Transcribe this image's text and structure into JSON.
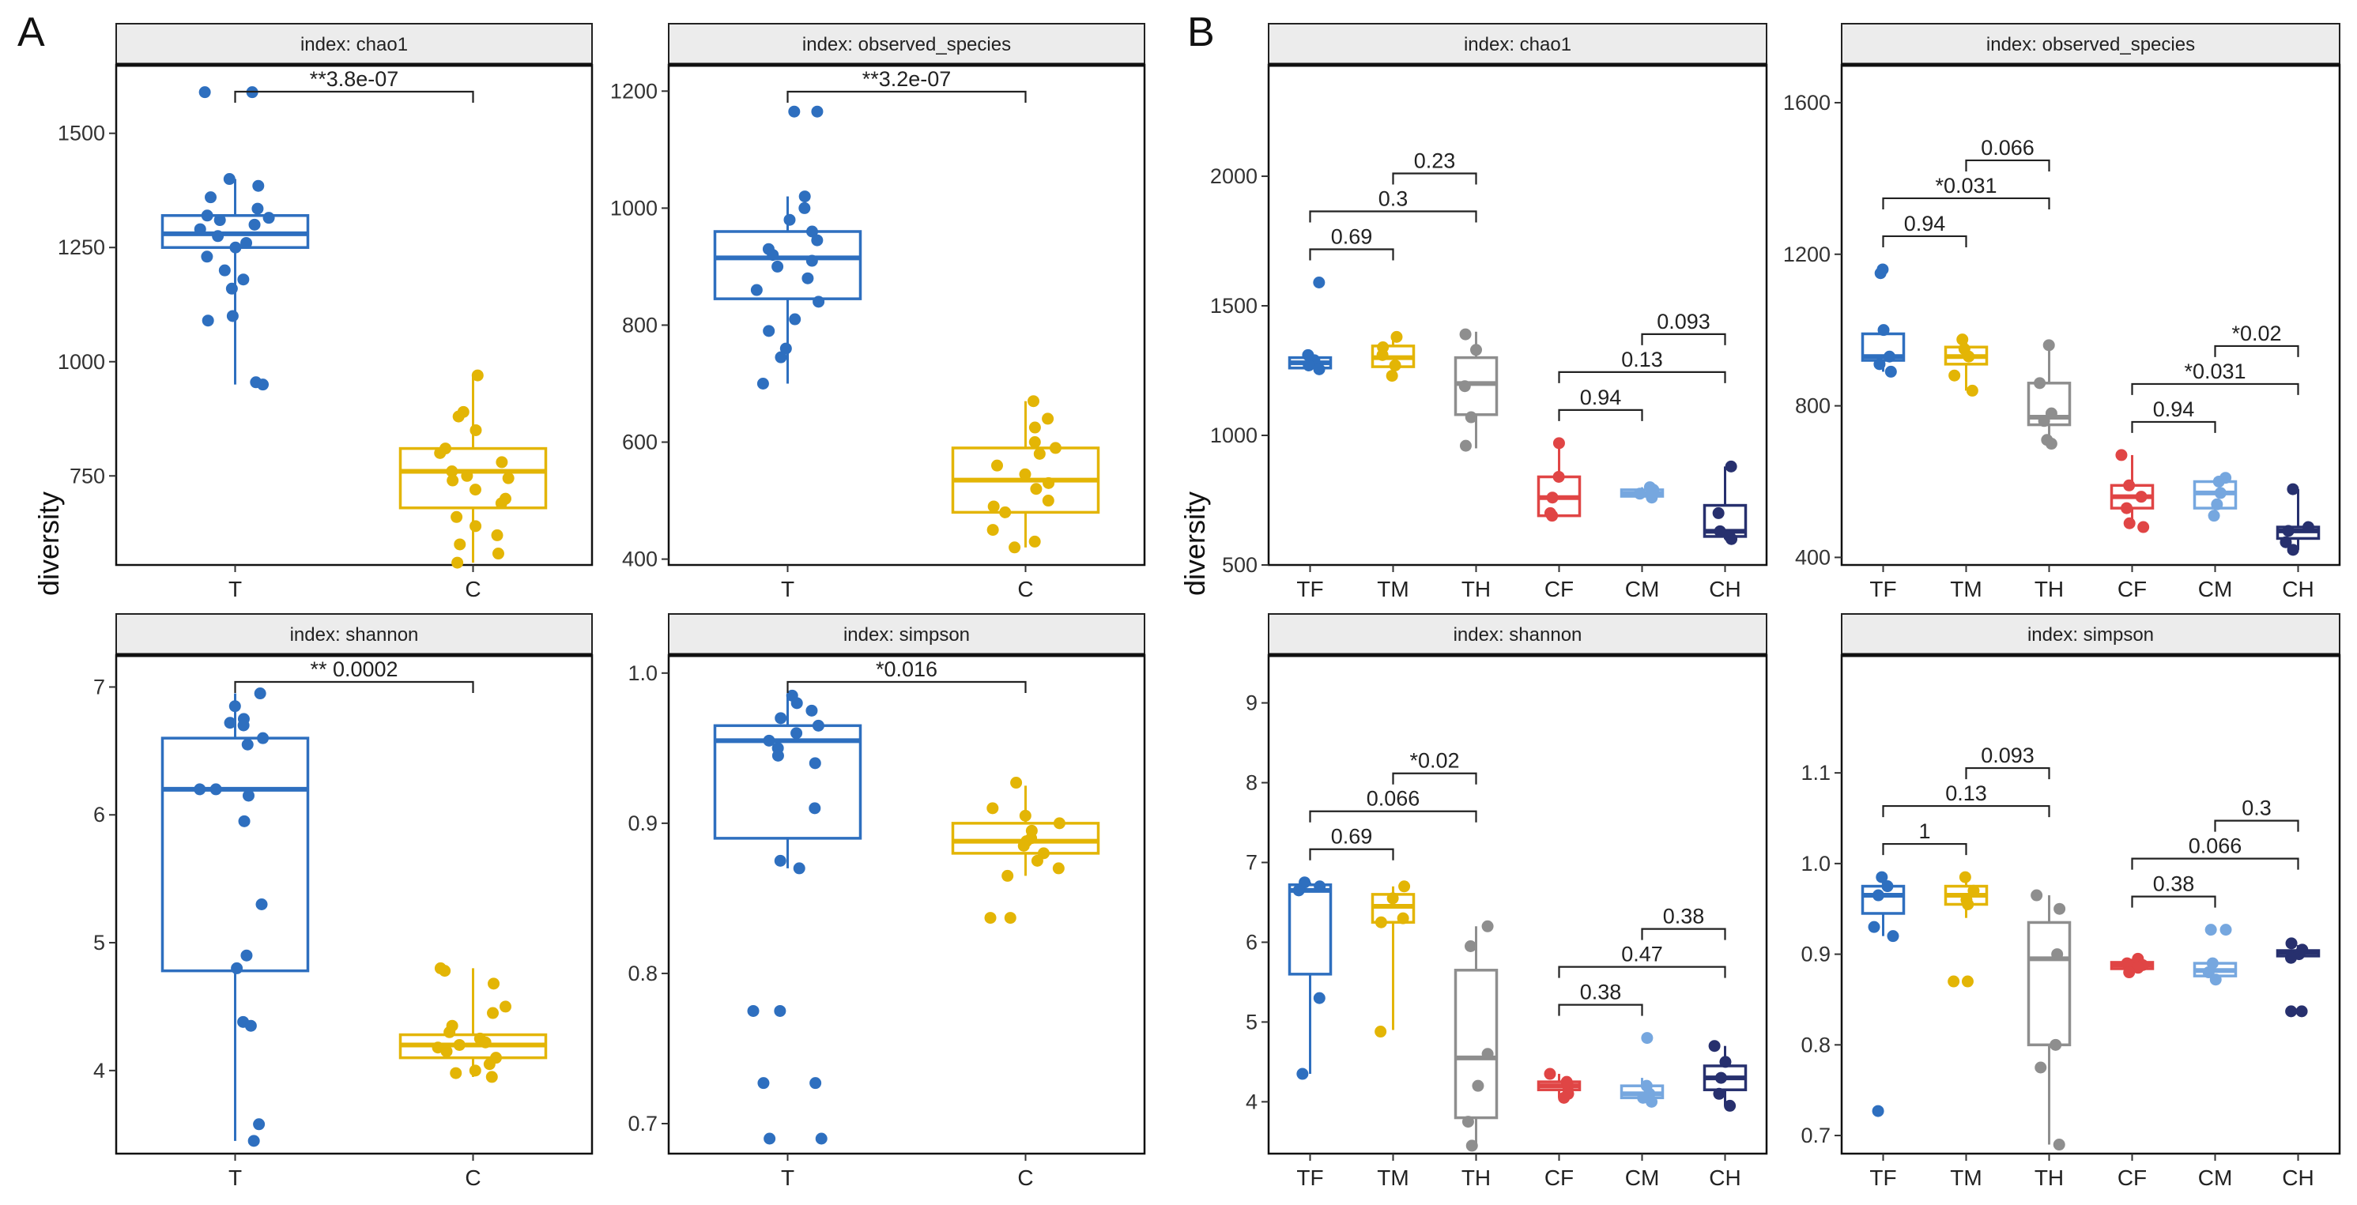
{
  "figure": {
    "panel_labels": [
      "A",
      "B"
    ],
    "shared_ylabel": "diversity"
  },
  "chart_data": [
    {
      "id": "A-chao1",
      "panel": "A",
      "type": "box",
      "title": "index: chao1",
      "ylabel": "diversity",
      "categories": [
        "T",
        "C"
      ],
      "colors": [
        "#2e6fbf",
        "#e3b505"
      ],
      "ylim": [
        555,
        1650
      ],
      "yticks": [
        750,
        1000,
        1250,
        1500
      ],
      "boxes": [
        {
          "category": "T",
          "min": 950,
          "q1": 1250,
          "median": 1280,
          "q3": 1320,
          "max": 1400,
          "points": [
            1590,
            1590,
            1400,
            1385,
            1360,
            1335,
            1320,
            1315,
            1310,
            1300,
            1290,
            1275,
            1260,
            1250,
            1230,
            1200,
            1180,
            1160,
            1100,
            1090,
            955,
            950
          ]
        },
        {
          "category": "C",
          "min": 560,
          "q1": 680,
          "median": 760,
          "q3": 810,
          "max": 970,
          "points": [
            970,
            890,
            880,
            850,
            810,
            800,
            780,
            760,
            750,
            745,
            740,
            720,
            700,
            690,
            660,
            640,
            620,
            600,
            580,
            560
          ]
        }
      ],
      "comparisons": [
        {
          "groups": [
            "T",
            "C"
          ],
          "label": "**3.8e-07"
        }
      ]
    },
    {
      "id": "A-observed",
      "panel": "A",
      "type": "box",
      "title": "index: observed_species",
      "ylabel": "diversity",
      "categories": [
        "T",
        "C"
      ],
      "colors": [
        "#2e6fbf",
        "#e3b505"
      ],
      "ylim": [
        390,
        1245
      ],
      "yticks": [
        400,
        600,
        800,
        1000,
        1200
      ],
      "boxes": [
        {
          "category": "T",
          "min": 700,
          "q1": 845,
          "median": 915,
          "q3": 960,
          "max": 1020,
          "points": [
            1165,
            1165,
            1020,
            1000,
            980,
            960,
            945,
            930,
            920,
            910,
            900,
            880,
            860,
            840,
            810,
            790,
            760,
            745,
            700
          ]
        },
        {
          "category": "C",
          "min": 420,
          "q1": 480,
          "median": 535,
          "q3": 590,
          "max": 670,
          "points": [
            670,
            640,
            625,
            600,
            590,
            580,
            560,
            545,
            530,
            520,
            500,
            490,
            480,
            450,
            430,
            420
          ]
        }
      ],
      "comparisons": [
        {
          "groups": [
            "T",
            "C"
          ],
          "label": "**3.2e-07"
        }
      ]
    },
    {
      "id": "A-shannon",
      "panel": "A",
      "type": "box",
      "title": "index: shannon",
      "ylabel": "diversity",
      "categories": [
        "T",
        "C"
      ],
      "colors": [
        "#2e6fbf",
        "#e3b505"
      ],
      "ylim": [
        3.35,
        7.25
      ],
      "yticks": [
        4,
        5,
        6,
        7
      ],
      "boxes": [
        {
          "category": "T",
          "min": 3.45,
          "q1": 4.78,
          "median": 6.2,
          "q3": 6.6,
          "max": 6.95,
          "points": [
            6.95,
            6.85,
            6.75,
            6.72,
            6.7,
            6.6,
            6.55,
            6.2,
            6.2,
            6.15,
            5.95,
            5.3,
            4.9,
            4.8,
            4.38,
            4.35,
            3.58,
            3.45
          ]
        },
        {
          "category": "C",
          "min": 3.95,
          "q1": 4.1,
          "median": 4.2,
          "q3": 4.28,
          "max": 4.8,
          "points": [
            4.8,
            4.78,
            4.68,
            4.5,
            4.45,
            4.35,
            4.3,
            4.25,
            4.22,
            4.2,
            4.18,
            4.15,
            4.1,
            4.05,
            4.0,
            3.98,
            3.95
          ]
        }
      ],
      "comparisons": [
        {
          "groups": [
            "T",
            "C"
          ],
          "label": "** 0.0002"
        }
      ]
    },
    {
      "id": "A-simpson",
      "panel": "A",
      "type": "box",
      "title": "index: simpson",
      "ylabel": "diversity",
      "categories": [
        "T",
        "C"
      ],
      "colors": [
        "#2e6fbf",
        "#e3b505"
      ],
      "ylim": [
        0.68,
        1.012
      ],
      "yticks": [
        0.7,
        0.8,
        0.9,
        1.0
      ],
      "boxes": [
        {
          "category": "T",
          "min": 0.87,
          "q1": 0.89,
          "median": 0.955,
          "q3": 0.965,
          "max": 0.985,
          "points": [
            0.985,
            0.98,
            0.975,
            0.97,
            0.965,
            0.96,
            0.955,
            0.95,
            0.945,
            0.94,
            0.91,
            0.875,
            0.87,
            0.775,
            0.775,
            0.727,
            0.727,
            0.69,
            0.69
          ]
        },
        {
          "category": "C",
          "min": 0.865,
          "q1": 0.88,
          "median": 0.888,
          "q3": 0.9,
          "max": 0.925,
          "points": [
            0.927,
            0.91,
            0.905,
            0.9,
            0.895,
            0.89,
            0.888,
            0.885,
            0.88,
            0.875,
            0.87,
            0.865,
            0.837,
            0.837
          ]
        }
      ],
      "comparisons": [
        {
          "groups": [
            "T",
            "C"
          ],
          "label": "*0.016"
        }
      ]
    },
    {
      "id": "B-chao1",
      "panel": "B",
      "type": "box",
      "title": "index: chao1",
      "ylabel": "diversity",
      "categories": [
        "TF",
        "TM",
        "TH",
        "CF",
        "CM",
        "CH"
      ],
      "colors": [
        "#2e6fbf",
        "#e3b505",
        "#8e8e8e",
        "#e04545",
        "#76a7df",
        "#27306e"
      ],
      "ylim": [
        500,
        2430
      ],
      "yticks": [
        500,
        1000,
        1500,
        2000
      ],
      "boxes": [
        {
          "category": "TF",
          "min": 1250,
          "q1": 1260,
          "median": 1280,
          "q3": 1300,
          "max": 1310,
          "points": [
            1590,
            1310,
            1290,
            1270,
            1255
          ]
        },
        {
          "category": "TM",
          "min": 1220,
          "q1": 1265,
          "median": 1300,
          "q3": 1345,
          "max": 1380,
          "points": [
            1380,
            1340,
            1310,
            1270,
            1230
          ]
        },
        {
          "category": "TH",
          "min": 950,
          "q1": 1080,
          "median": 1200,
          "q3": 1300,
          "max": 1400,
          "points": [
            1390,
            1330,
            1190,
            1070,
            960
          ]
        },
        {
          "category": "CF",
          "min": 690,
          "q1": 690,
          "median": 760,
          "q3": 840,
          "max": 970,
          "points": [
            970,
            840,
            760,
            700,
            690
          ]
        },
        {
          "category": "CM",
          "min": 760,
          "q1": 765,
          "median": 775,
          "q3": 790,
          "max": 800,
          "points": [
            800,
            790,
            775,
            770,
            760
          ]
        },
        {
          "category": "CH",
          "min": 600,
          "q1": 610,
          "median": 630,
          "q3": 730,
          "max": 880,
          "points": [
            880,
            700,
            630,
            610,
            600
          ]
        }
      ],
      "comparisons": [
        {
          "groups": [
            "TF",
            "TM"
          ],
          "label": "0.69"
        },
        {
          "groups": [
            "TF",
            "TH"
          ],
          "label": "0.3"
        },
        {
          "groups": [
            "TM",
            "TH"
          ],
          "label": "0.23"
        },
        {
          "groups": [
            "CF",
            "CM"
          ],
          "label": "0.94"
        },
        {
          "groups": [
            "CF",
            "CH"
          ],
          "label": "0.13"
        },
        {
          "groups": [
            "CM",
            "CH"
          ],
          "label": "0.093"
        }
      ]
    },
    {
      "id": "B-observed",
      "panel": "B",
      "type": "box",
      "title": "index: observed_species",
      "ylabel": "diversity",
      "categories": [
        "TF",
        "TM",
        "TH",
        "CF",
        "CM",
        "CH"
      ],
      "colors": [
        "#2e6fbf",
        "#e3b505",
        "#8e8e8e",
        "#e04545",
        "#76a7df",
        "#27306e"
      ],
      "ylim": [
        380,
        1700
      ],
      "yticks": [
        400,
        800,
        1200,
        1600
      ],
      "boxes": [
        {
          "category": "TF",
          "min": 890,
          "q1": 920,
          "median": 930,
          "q3": 990,
          "max": 1010,
          "points": [
            1160,
            1150,
            1000,
            930,
            910,
            890
          ]
        },
        {
          "category": "TM",
          "min": 840,
          "q1": 910,
          "median": 930,
          "q3": 955,
          "max": 975,
          "points": [
            975,
            950,
            930,
            880,
            840
          ]
        },
        {
          "category": "TH",
          "min": 700,
          "q1": 750,
          "median": 770,
          "q3": 860,
          "max": 960,
          "points": [
            960,
            860,
            780,
            760,
            710,
            700
          ]
        },
        {
          "category": "CF",
          "min": 480,
          "q1": 530,
          "median": 560,
          "q3": 590,
          "max": 670,
          "points": [
            670,
            590,
            560,
            530,
            490,
            480
          ]
        },
        {
          "category": "CM",
          "min": 510,
          "q1": 530,
          "median": 570,
          "q3": 600,
          "max": 610,
          "points": [
            610,
            600,
            570,
            540,
            510
          ]
        },
        {
          "category": "CH",
          "min": 420,
          "q1": 450,
          "median": 470,
          "q3": 480,
          "max": 580,
          "points": [
            580,
            480,
            470,
            440,
            420
          ]
        }
      ],
      "comparisons": [
        {
          "groups": [
            "TF",
            "TM"
          ],
          "label": "0.94"
        },
        {
          "groups": [
            "TF",
            "TH"
          ],
          "label": "*0.031"
        },
        {
          "groups": [
            "TM",
            "TH"
          ],
          "label": "0.066"
        },
        {
          "groups": [
            "CF",
            "CM"
          ],
          "label": "0.94"
        },
        {
          "groups": [
            "CF",
            "CH"
          ],
          "label": "*0.031"
        },
        {
          "groups": [
            "CM",
            "CH"
          ],
          "label": "*0.02"
        }
      ]
    },
    {
      "id": "B-shannon",
      "panel": "B",
      "type": "box",
      "title": "index: shannon",
      "ylabel": "diversity",
      "categories": [
        "TF",
        "TM",
        "TH",
        "CF",
        "CM",
        "CH"
      ],
      "colors": [
        "#2e6fbf",
        "#e3b505",
        "#8e8e8e",
        "#e04545",
        "#76a7df",
        "#27306e"
      ],
      "ylim": [
        3.35,
        9.6
      ],
      "yticks": [
        4,
        5,
        6,
        7,
        8,
        9
      ],
      "boxes": [
        {
          "category": "TF",
          "min": 4.35,
          "q1": 5.6,
          "median": 6.65,
          "q3": 6.72,
          "max": 6.75,
          "points": [
            6.75,
            6.7,
            6.65,
            5.3,
            4.35
          ]
        },
        {
          "category": "TM",
          "min": 4.9,
          "q1": 6.25,
          "median": 6.45,
          "q3": 6.6,
          "max": 6.7,
          "points": [
            6.7,
            6.55,
            6.3,
            6.25,
            4.88
          ]
        },
        {
          "category": "TH",
          "min": 3.45,
          "q1": 3.8,
          "median": 4.55,
          "q3": 5.65,
          "max": 6.2,
          "points": [
            6.2,
            5.95,
            4.6,
            4.2,
            3.75,
            3.45
          ]
        },
        {
          "category": "CF",
          "min": 4.05,
          "q1": 4.15,
          "median": 4.2,
          "q3": 4.25,
          "max": 4.35,
          "points": [
            4.35,
            4.25,
            4.2,
            4.1,
            4.05
          ]
        },
        {
          "category": "CM",
          "min": 4.0,
          "q1": 4.05,
          "median": 4.1,
          "q3": 4.2,
          "max": 4.3,
          "points": [
            4.8,
            4.2,
            4.1,
            4.05,
            4.0
          ]
        },
        {
          "category": "CH",
          "min": 3.95,
          "q1": 4.15,
          "median": 4.3,
          "q3": 4.45,
          "max": 4.7,
          "points": [
            4.7,
            4.5,
            4.3,
            4.1,
            3.95
          ]
        }
      ],
      "comparisons": [
        {
          "groups": [
            "TF",
            "TM"
          ],
          "label": "0.69"
        },
        {
          "groups": [
            "TF",
            "TH"
          ],
          "label": "0.066"
        },
        {
          "groups": [
            "TM",
            "TH"
          ],
          "label": "*0.02"
        },
        {
          "groups": [
            "CF",
            "CM"
          ],
          "label": "0.38"
        },
        {
          "groups": [
            "CF",
            "CH"
          ],
          "label": "0.47"
        },
        {
          "groups": [
            "CM",
            "CH"
          ],
          "label": "0.38"
        }
      ]
    },
    {
      "id": "B-simpson",
      "panel": "B",
      "type": "box",
      "title": "index: simpson",
      "ylabel": "diversity",
      "categories": [
        "TF",
        "TM",
        "TH",
        "CF",
        "CM",
        "CH"
      ],
      "colors": [
        "#2e6fbf",
        "#e3b505",
        "#8e8e8e",
        "#e04545",
        "#76a7df",
        "#27306e"
      ],
      "ylim": [
        0.68,
        1.23
      ],
      "yticks": [
        0.7,
        0.8,
        0.9,
        1.0,
        1.1
      ],
      "boxes": [
        {
          "category": "TF",
          "min": 0.92,
          "q1": 0.945,
          "median": 0.965,
          "q3": 0.975,
          "max": 0.985,
          "points": [
            0.985,
            0.975,
            0.965,
            0.93,
            0.92,
            0.727
          ]
        },
        {
          "category": "TM",
          "min": 0.94,
          "q1": 0.955,
          "median": 0.965,
          "q3": 0.975,
          "max": 0.985,
          "points": [
            0.985,
            0.97,
            0.96,
            0.955,
            0.87,
            0.87
          ]
        },
        {
          "category": "TH",
          "min": 0.69,
          "q1": 0.8,
          "median": 0.895,
          "q3": 0.935,
          "max": 0.965,
          "points": [
            0.965,
            0.95,
            0.9,
            0.8,
            0.775,
            0.69
          ]
        },
        {
          "category": "CF",
          "min": 0.88,
          "q1": 0.884,
          "median": 0.888,
          "q3": 0.891,
          "max": 0.895,
          "points": [
            0.895,
            0.89,
            0.888,
            0.885,
            0.88
          ]
        },
        {
          "category": "CM",
          "min": 0.87,
          "q1": 0.876,
          "median": 0.882,
          "q3": 0.89,
          "max": 0.895,
          "points": [
            0.927,
            0.927,
            0.89,
            0.88,
            0.872
          ]
        },
        {
          "category": "CH",
          "min": 0.895,
          "q1": 0.898,
          "median": 0.902,
          "q3": 0.904,
          "max": 0.91,
          "points": [
            0.912,
            0.905,
            0.9,
            0.896,
            0.837,
            0.837
          ]
        }
      ],
      "comparisons": [
        {
          "groups": [
            "TF",
            "TM"
          ],
          "label": "1"
        },
        {
          "groups": [
            "TF",
            "TH"
          ],
          "label": "0.13"
        },
        {
          "groups": [
            "TM",
            "TH"
          ],
          "label": "0.093"
        },
        {
          "groups": [
            "CF",
            "CM"
          ],
          "label": "0.38"
        },
        {
          "groups": [
            "CF",
            "CH"
          ],
          "label": "0.066"
        },
        {
          "groups": [
            "CM",
            "CH"
          ],
          "label": "0.3"
        }
      ]
    }
  ]
}
